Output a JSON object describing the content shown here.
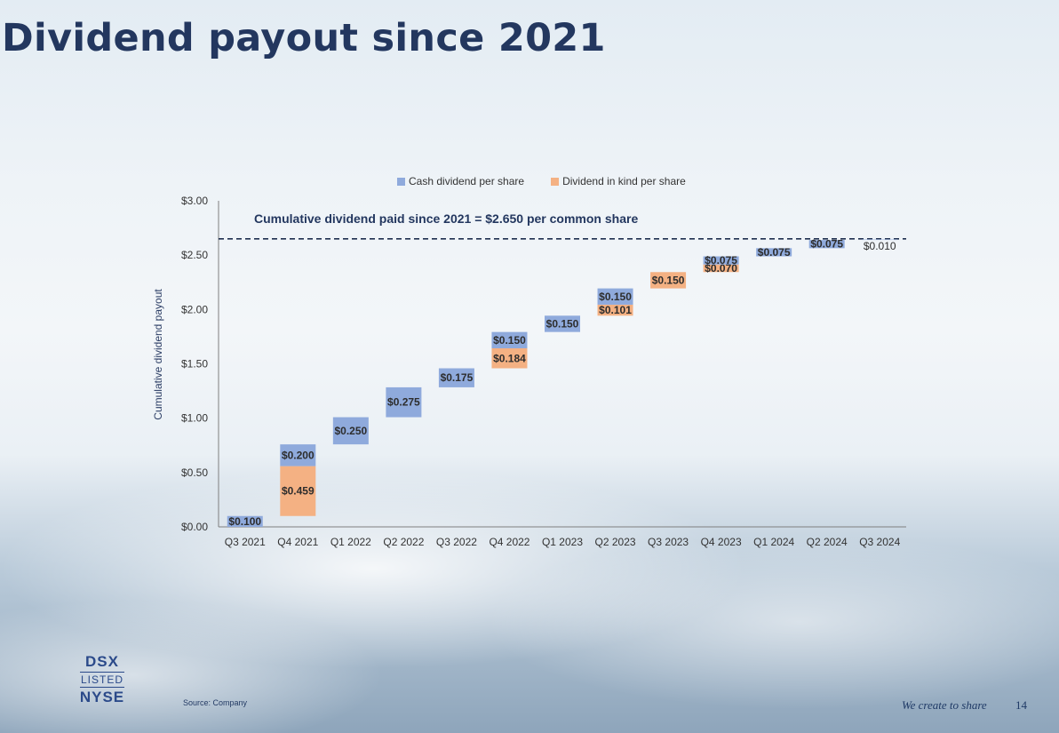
{
  "title": "Dividend payout since 2021",
  "colors": {
    "cash": "#8faadc",
    "inkind": "#f4b183",
    "title": "#23375f"
  },
  "chart_data": {
    "type": "bar",
    "subtype": "stacked-waterfall",
    "ylabel": "Cumulative dividend payout",
    "ylim": [
      0,
      3
    ],
    "yticks": [
      "$0.00",
      "$0.50",
      "$1.00",
      "$1.50",
      "$2.00",
      "$2.50",
      "$3.00"
    ],
    "ytick_values": [
      0,
      0.5,
      1,
      1.5,
      2,
      2.5,
      3
    ],
    "legend_position": "top",
    "legend": [
      "Cash dividend per share",
      "Dividend in kind per share"
    ],
    "categories": [
      "Q3 2021",
      "Q4 2021",
      "Q1 2022",
      "Q2 2022",
      "Q3 2022",
      "Q4 2022",
      "Q1 2023",
      "Q2 2023",
      "Q3 2023",
      "Q4 2023",
      "Q1 2024",
      "Q2 2024",
      "Q3 2024"
    ],
    "series": [
      {
        "name": "Cash dividend per share",
        "values": [
          0.1,
          0.2,
          0.25,
          0.275,
          0.175,
          0.15,
          0.15,
          0.15,
          0,
          0.075,
          0.075,
          0.075,
          0.01
        ]
      },
      {
        "name": "Dividend in kind per share",
        "values": [
          0,
          0.459,
          0,
          0,
          0,
          0.184,
          0,
          0.101,
          0.15,
          0.07,
          0,
          0,
          0
        ]
      }
    ],
    "data_labels": {
      "cash": [
        "$0.100",
        "$0.200",
        "$0.250",
        "$0.275",
        "$0.175",
        "$0.150",
        "$0.150",
        "$0.150",
        "",
        "$0.075",
        "$0.075",
        "$0.075",
        "$0.010"
      ],
      "inkind": [
        "",
        "$0.459",
        "",
        "",
        "",
        "$0.184",
        "",
        "$0.101",
        "$0.150",
        "$0.070",
        "",
        "",
        ""
      ]
    },
    "cumulative_line": 2.65,
    "annotation": "Cumulative dividend paid since 2021 = $2.650 per common share"
  },
  "logo": {
    "line1": "DSX",
    "line2": "LISTED",
    "line3": "NYSE"
  },
  "footer": {
    "source": "Source: Company",
    "tagline": "We create to share",
    "page": "14"
  }
}
